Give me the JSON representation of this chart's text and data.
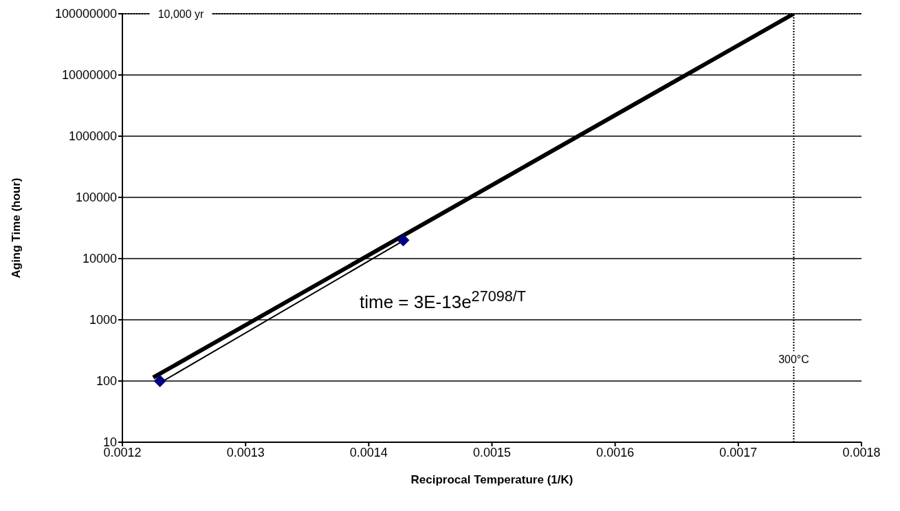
{
  "chart_data": {
    "type": "scatter",
    "xlabel": "Reciprocal Temperature (1/K)",
    "ylabel": "Aging Time (hour)",
    "xlim": [
      0.0012,
      0.0018
    ],
    "xticks": [
      0.0012,
      0.0013,
      0.0014,
      0.0015,
      0.0016,
      0.0017,
      0.0018
    ],
    "ylim": [
      10,
      100000000
    ],
    "yticks": [
      10,
      100,
      1000,
      10000,
      100000,
      1000000,
      10000000,
      100000000
    ],
    "log": "y",
    "grid": "y",
    "legend": false,
    "series": [
      {
        "type": "line",
        "color": "#000000",
        "x": [
          0.001225,
          0.001745
        ],
        "values": [
          114,
          100000000
        ]
      },
      {
        "type": "line",
        "color": "#000000",
        "x": [
          0.001232,
          0.001428
        ],
        "values": [
          97,
          19500
        ]
      },
      {
        "marker": "diamond",
        "color": "#000080",
        "x": [
          0.0012305,
          0.001428
        ],
        "values": [
          100,
          20000
        ]
      }
    ],
    "ref_lines": [
      {
        "axis": "y",
        "value": 100000000,
        "label": "10,000 yr",
        "line_style": "dotted",
        "color": "#000000"
      },
      {
        "axis": "x",
        "value": 0.001745,
        "label": "300°C",
        "line_style": "dotted",
        "color": "#000000"
      }
    ],
    "annotations": [
      "time = 3E-13e$^{27098/T}$"
    ]
  }
}
